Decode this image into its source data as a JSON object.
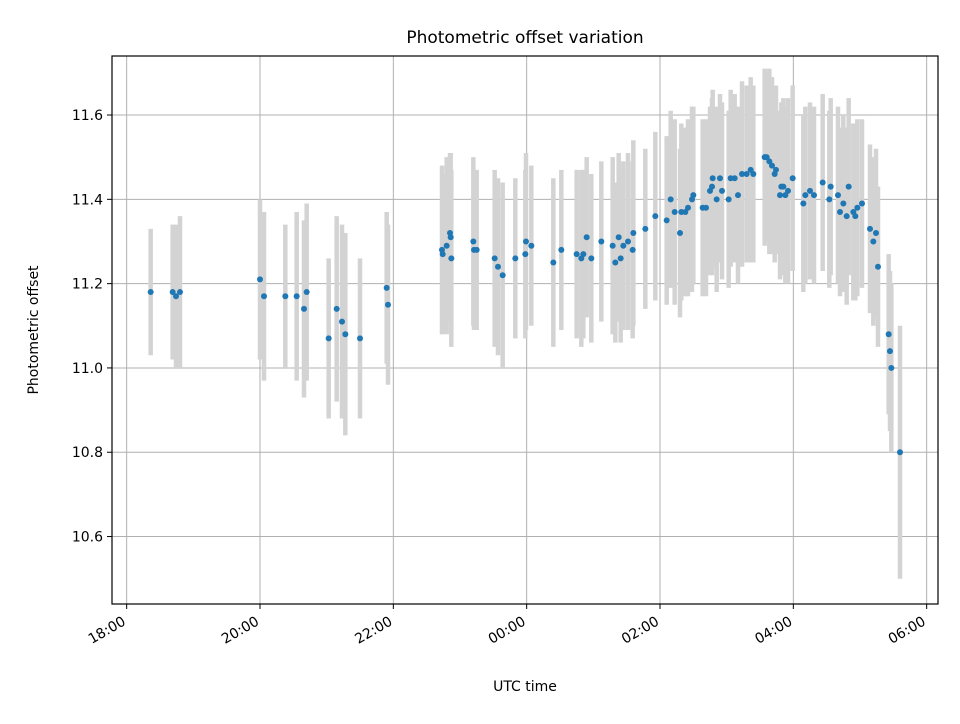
{
  "chart_data": {
    "type": "scatter",
    "title": "Photometric offset variation",
    "xlabel": "UTC time",
    "ylabel": "Photometric offset",
    "x_unit": "hours",
    "x_ticks": [
      "18:00",
      "20:00",
      "22:00",
      "00:00",
      "02:00",
      "04:00",
      "06:00"
    ],
    "x_tick_hours": [
      18,
      20,
      22,
      24,
      26,
      28,
      30
    ],
    "xlim": [
      17.78,
      30.17
    ],
    "y_ticks": [
      "10.6",
      "10.8",
      "11.0",
      "11.2",
      "11.4",
      "11.6"
    ],
    "y_tick_values": [
      10.6,
      10.8,
      11.0,
      11.2,
      11.4,
      11.6
    ],
    "ylim": [
      10.44,
      11.74
    ],
    "grid": true,
    "colors": {
      "point": "#1f77b4",
      "errorbar": "#d3d3d3",
      "grid": "#b0b0b0",
      "axes": "#000000"
    },
    "series": [
      {
        "points": [
          [
            18.36,
            11.18,
            0.15
          ],
          [
            18.69,
            11.18,
            0.16
          ],
          [
            18.74,
            11.17,
            0.17
          ],
          [
            18.8,
            11.18,
            0.18
          ],
          [
            20.0,
            11.21,
            0.19
          ],
          [
            20.06,
            11.17,
            0.2
          ],
          [
            20.38,
            11.17,
            0.17
          ],
          [
            20.55,
            11.17,
            0.2
          ],
          [
            20.66,
            11.14,
            0.21
          ],
          [
            20.7,
            11.18,
            0.21
          ],
          [
            21.03,
            11.07,
            0.19
          ],
          [
            21.15,
            11.14,
            0.22
          ],
          [
            21.23,
            11.11,
            0.23
          ],
          [
            21.28,
            11.08,
            0.24
          ],
          [
            21.5,
            11.07,
            0.19
          ],
          [
            21.9,
            11.19,
            0.18
          ],
          [
            21.92,
            11.15,
            0.19
          ],
          [
            22.73,
            11.28,
            0.2
          ],
          [
            22.74,
            11.27,
            0.19
          ],
          [
            22.8,
            11.29,
            0.21
          ],
          [
            22.85,
            11.32,
            0.19
          ],
          [
            22.86,
            11.31,
            0.2
          ],
          [
            22.87,
            11.26,
            0.21
          ],
          [
            23.2,
            11.3,
            0.2
          ],
          [
            23.21,
            11.28,
            0.19
          ],
          [
            23.25,
            11.28,
            0.19
          ],
          [
            23.52,
            11.26,
            0.21
          ],
          [
            23.57,
            11.24,
            0.21
          ],
          [
            23.64,
            11.22,
            0.22
          ],
          [
            23.83,
            11.26,
            0.19
          ],
          [
            23.98,
            11.27,
            0.2
          ],
          [
            23.99,
            11.3,
            0.21
          ],
          [
            24.07,
            11.29,
            0.19
          ],
          [
            24.4,
            11.25,
            0.2
          ],
          [
            24.52,
            11.28,
            0.19
          ],
          [
            24.75,
            11.27,
            0.2
          ],
          [
            24.82,
            11.26,
            0.21
          ],
          [
            24.85,
            11.27,
            0.2
          ],
          [
            24.9,
            11.31,
            0.19
          ],
          [
            24.97,
            11.26,
            0.2
          ],
          [
            25.12,
            11.3,
            0.19
          ],
          [
            25.29,
            11.29,
            0.21
          ],
          [
            25.33,
            11.25,
            0.19
          ],
          [
            25.38,
            11.31,
            0.2
          ],
          [
            25.41,
            11.26,
            0.2
          ],
          [
            25.45,
            11.29,
            0.2
          ],
          [
            25.52,
            11.3,
            0.21
          ],
          [
            25.59,
            11.28,
            0.21
          ],
          [
            25.6,
            11.32,
            0.22
          ],
          [
            25.78,
            11.33,
            0.19
          ],
          [
            25.93,
            11.36,
            0.2
          ],
          [
            26.1,
            11.35,
            0.2
          ],
          [
            26.16,
            11.4,
            0.21
          ],
          [
            26.22,
            11.37,
            0.22
          ],
          [
            26.3,
            11.32,
            0.2
          ],
          [
            26.32,
            11.37,
            0.21
          ],
          [
            26.38,
            11.37,
            0.2
          ],
          [
            26.42,
            11.38,
            0.21
          ],
          [
            26.48,
            11.4,
            0.22
          ],
          [
            26.5,
            11.41,
            0.21
          ],
          [
            26.64,
            11.38,
            0.21
          ],
          [
            26.69,
            11.38,
            0.21
          ],
          [
            26.75,
            11.42,
            0.2
          ],
          [
            26.78,
            11.43,
            0.21
          ],
          [
            26.79,
            11.45,
            0.21
          ],
          [
            26.85,
            11.4,
            0.22
          ],
          [
            26.9,
            11.45,
            0.2
          ],
          [
            26.93,
            11.42,
            0.21
          ],
          [
            27.03,
            11.4,
            0.21
          ],
          [
            27.06,
            11.45,
            0.21
          ],
          [
            27.12,
            11.45,
            0.2
          ],
          [
            27.17,
            11.41,
            0.21
          ],
          [
            27.23,
            11.46,
            0.22
          ],
          [
            27.3,
            11.46,
            0.21
          ],
          [
            27.36,
            11.47,
            0.22
          ],
          [
            27.4,
            11.46,
            0.21
          ],
          [
            27.57,
            11.5,
            0.21
          ],
          [
            27.6,
            11.5,
            0.2
          ],
          [
            27.64,
            11.49,
            0.22
          ],
          [
            27.68,
            11.48,
            0.21
          ],
          [
            27.72,
            11.46,
            0.21
          ],
          [
            27.74,
            11.47,
            0.2
          ],
          [
            27.8,
            11.41,
            0.2
          ],
          [
            27.82,
            11.43,
            0.2
          ],
          [
            27.85,
            11.43,
            0.21
          ],
          [
            27.88,
            11.41,
            0.21
          ],
          [
            27.92,
            11.42,
            0.22
          ],
          [
            27.99,
            11.45,
            0.22
          ],
          [
            28.15,
            11.39,
            0.21
          ],
          [
            28.18,
            11.41,
            0.21
          ],
          [
            28.25,
            11.42,
            0.21
          ],
          [
            28.31,
            11.41,
            0.21
          ],
          [
            28.44,
            11.44,
            0.21
          ],
          [
            28.54,
            11.4,
            0.21
          ],
          [
            28.56,
            11.43,
            0.21
          ],
          [
            28.67,
            11.41,
            0.21
          ],
          [
            28.7,
            11.37,
            0.2
          ],
          [
            28.75,
            11.39,
            0.21
          ],
          [
            28.8,
            11.36,
            0.21
          ],
          [
            28.83,
            11.43,
            0.21
          ],
          [
            28.9,
            11.37,
            0.21
          ],
          [
            28.93,
            11.36,
            0.2
          ],
          [
            28.96,
            11.38,
            0.21
          ],
          [
            29.03,
            11.39,
            0.2
          ],
          [
            29.15,
            11.33,
            0.2
          ],
          [
            29.2,
            11.3,
            0.2
          ],
          [
            29.24,
            11.32,
            0.2
          ],
          [
            29.27,
            11.24,
            0.19
          ],
          [
            29.43,
            11.08,
            0.19
          ],
          [
            29.45,
            11.04,
            0.19
          ],
          [
            29.47,
            11.0,
            0.2
          ],
          [
            29.6,
            10.8,
            0.3
          ]
        ]
      }
    ]
  }
}
